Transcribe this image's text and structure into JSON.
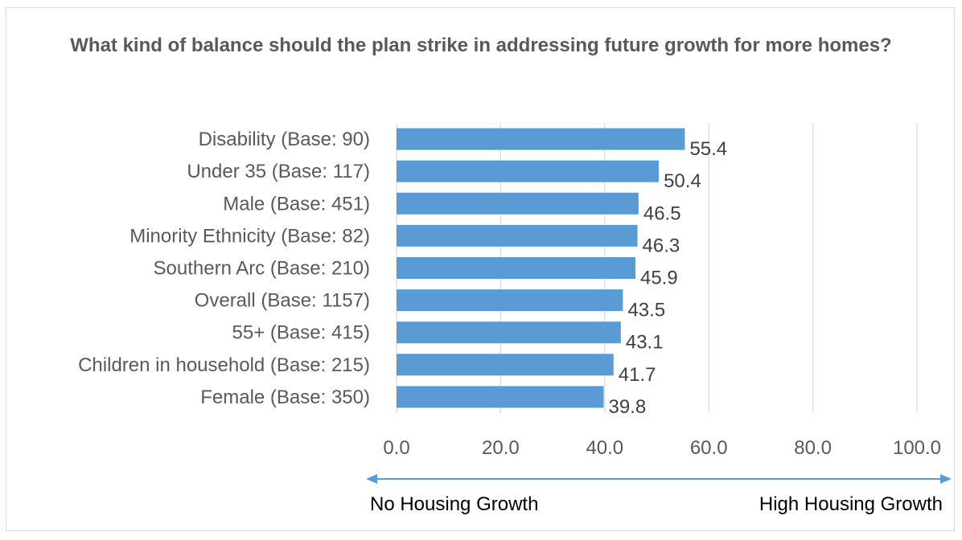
{
  "chart_data": {
    "type": "bar",
    "orientation": "horizontal",
    "title": "What kind of balance should the plan strike in addressing future growth for more homes?",
    "categories": [
      "Disability (Base: 90)",
      "Under 35 (Base: 117)",
      "Male (Base: 451)",
      "Minority Ethnicity (Base: 82)",
      "Southern Arc (Base: 210)",
      "Overall (Base: 1157)",
      "55+ (Base: 415)",
      "Children in household (Base: 215)",
      "Female (Base: 350)"
    ],
    "values": [
      55.4,
      50.4,
      46.5,
      46.3,
      45.9,
      43.5,
      43.1,
      41.7,
      39.8
    ],
    "value_labels": [
      "55.4",
      "50.4",
      "46.5",
      "46.3",
      "45.9",
      "43.5",
      "43.1",
      "41.7",
      "39.8"
    ],
    "xlim": [
      0,
      100
    ],
    "xticks": [
      "0.0",
      "20.0",
      "40.0",
      "60.0",
      "80.0",
      "100.0"
    ],
    "grid": "vertical",
    "bar_color": "#5b9bd5",
    "arrow_color": "#5b9bd5",
    "scale_left_label": "No Housing Growth",
    "scale_right_label": "High Housing Growth"
  }
}
